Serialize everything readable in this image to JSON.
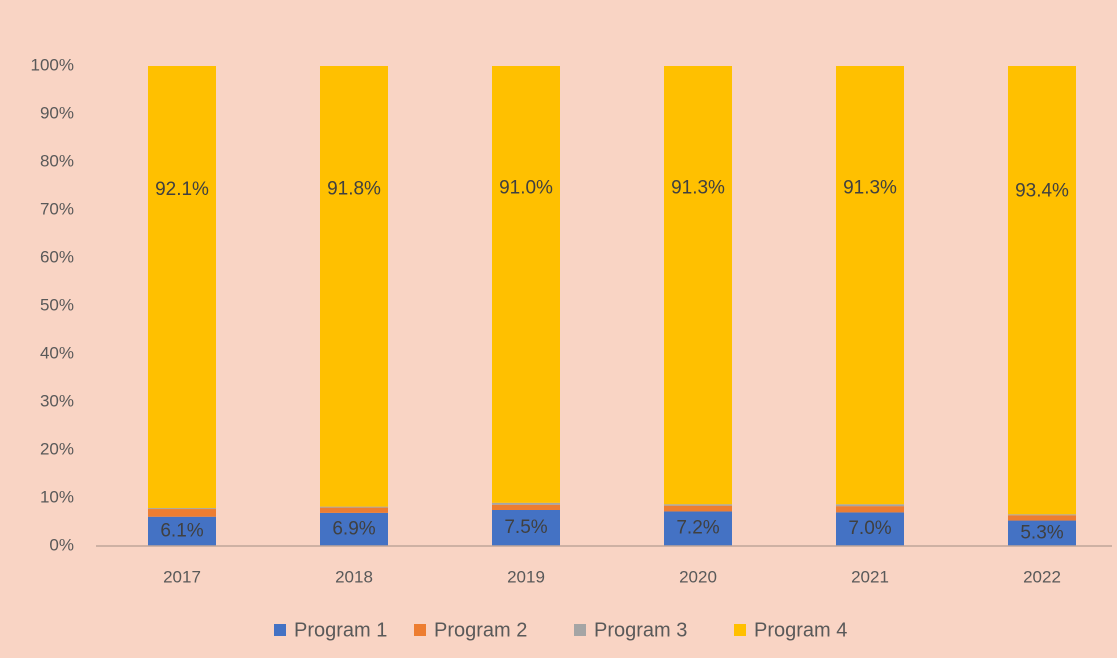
{
  "chart_data": {
    "type": "stacked_bar",
    "categories": [
      "2017",
      "2018",
      "2019",
      "2020",
      "2021",
      "2022"
    ],
    "series": [
      {
        "name": "Program 1",
        "color": "#4472c4",
        "values": [
          6.1,
          6.9,
          7.5,
          7.2,
          7.0,
          5.3
        ],
        "value_labels": [
          "6.1%",
          "6.9%",
          "7.5%",
          "7.2%",
          "7.0%",
          "5.3%"
        ]
      },
      {
        "name": "Program 2",
        "color": "#ed7d31",
        "values": [
          1.6,
          1.1,
          1.1,
          1.2,
          1.3,
          1.1
        ]
      },
      {
        "name": "Program 3",
        "color": "#a5a5a5",
        "values": [
          0.2,
          0.2,
          0.4,
          0.3,
          0.4,
          0.2
        ]
      },
      {
        "name": "Program 4",
        "color": "#ffc000",
        "values": [
          92.1,
          91.8,
          91.0,
          91.3,
          91.3,
          93.4
        ],
        "value_labels": [
          "92.1%",
          "91.8%",
          "91.0%",
          "91.3%",
          "91.3%",
          "93.4%"
        ]
      }
    ],
    "ylim": [
      0,
      100
    ],
    "yticks": [
      {
        "value": 0,
        "label": "0%"
      },
      {
        "value": 10,
        "label": "10%"
      },
      {
        "value": 20,
        "label": "20%"
      },
      {
        "value": 30,
        "label": "30%"
      },
      {
        "value": 40,
        "label": "40%"
      },
      {
        "value": 50,
        "label": "50%"
      },
      {
        "value": 60,
        "label": "60%"
      },
      {
        "value": 70,
        "label": "70%"
      },
      {
        "value": 80,
        "label": "80%"
      },
      {
        "value": 90,
        "label": "90%"
      },
      {
        "value": 100,
        "label": "100%"
      }
    ],
    "legend": "bottom"
  }
}
